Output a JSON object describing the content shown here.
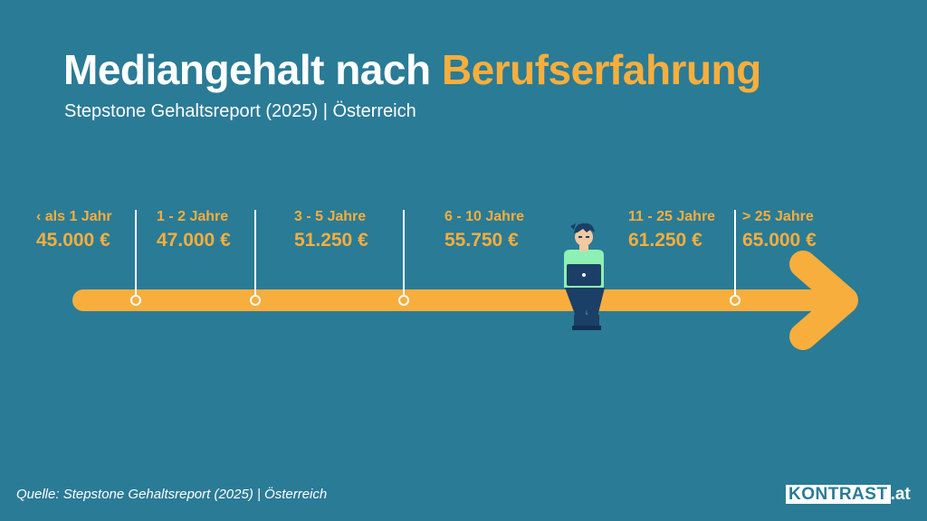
{
  "header": {
    "title_main": "Mediangehalt nach",
    "title_accent": "Berufserfahrung",
    "subtitle": "Stepstone Gehaltsreport (2025) | Österreich"
  },
  "timeline": {
    "milestones": [
      {
        "label": "‹ als 1 Jahr",
        "value": "45.000 €"
      },
      {
        "label": "1 - 2 Jahre",
        "value": "47.000 €"
      },
      {
        "label": "3 - 5 Jahre",
        "value": "51.250 €"
      },
      {
        "label": "6 - 10 Jahre",
        "value": "55.750 €"
      },
      {
        "label": "11  - 25 Jahre",
        "value": "61.250 €"
      },
      {
        "label": ">  25 Jahre",
        "value": "65.000 €"
      }
    ]
  },
  "footer": {
    "source": "Quelle: Stepstone Gehaltsreport (2025) | Österreich",
    "logo_box": "KONTRAST",
    "logo_suffix": ".at"
  },
  "colors": {
    "background": "#2a7b96",
    "accent": "#f7ae3d",
    "text": "#ffffff",
    "person_shirt": "#8ef0b4",
    "person_pants": "#1b3f66"
  }
}
